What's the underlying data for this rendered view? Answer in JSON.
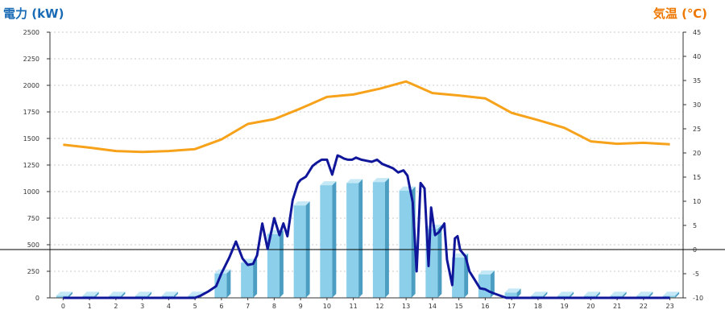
{
  "chart_data": {
    "type": "bar+line",
    "title_left": "電力 (kW)",
    "title_right": "気温 (℃)",
    "colors": {
      "title_left": "#1a6bb5",
      "title_right": "#ee7700",
      "bars": "#8ccfea",
      "bars_side": "#4b9ec2",
      "bars_top": "#c4e8f6",
      "power_line": "#10169a",
      "temp_line": "#f7a21b",
      "grid": "#bbbbbb",
      "zero_line": "#000000"
    },
    "grid": true,
    "categories": [
      "0",
      "1",
      "2",
      "3",
      "4",
      "5",
      "6",
      "7",
      "8",
      "9",
      "10",
      "11",
      "12",
      "13",
      "14",
      "15",
      "16",
      "17",
      "18",
      "19",
      "20",
      "21",
      "22",
      "23"
    ],
    "y_left": {
      "min": 0,
      "max": 2500,
      "ticks": [
        "0",
        "250",
        "500",
        "750",
        "1000",
        "1250",
        "1500",
        "1750",
        "2000",
        "2250",
        "2500"
      ]
    },
    "y_right": {
      "min": -10,
      "max": 45,
      "ticks": [
        "-10",
        "-5",
        "0",
        "5",
        "10",
        "15",
        "20",
        "25",
        "30",
        "35",
        "40",
        "45"
      ]
    },
    "series": [
      {
        "kind": "bar",
        "axis": "left",
        "values": [
          20,
          20,
          20,
          20,
          20,
          20,
          230,
          330,
          600,
          870,
          1060,
          1080,
          1090,
          1010,
          650,
          380,
          220,
          50,
          20,
          20,
          20,
          20,
          20,
          20
        ]
      },
      {
        "kind": "line",
        "axis": "right",
        "values": [
          21.7,
          21.1,
          20.4,
          20.2,
          20.4,
          20.8,
          22.8,
          26.0,
          27.0,
          29.2,
          31.6,
          32.1,
          33.3,
          34.8,
          32.4,
          31.9,
          31.3,
          28.3,
          26.8,
          25.2,
          22.4,
          21.9,
          22.1,
          21.8
        ]
      },
      {
        "kind": "line",
        "axis": "left",
        "x": [
          0,
          1,
          2,
          3,
          4,
          5,
          5.2,
          5.5,
          5.8,
          6.0,
          6.3,
          6.55,
          6.8,
          7.0,
          7.2,
          7.35,
          7.55,
          7.75,
          8.0,
          8.2,
          8.35,
          8.5,
          8.7,
          8.9,
          9.0,
          9.2,
          9.45,
          9.6,
          9.8,
          10.0,
          10.2,
          10.4,
          10.5,
          10.65,
          10.8,
          10.95,
          11.1,
          11.3,
          11.5,
          11.7,
          11.9,
          12.1,
          12.3,
          12.5,
          12.7,
          12.9,
          13.05,
          13.25,
          13.4,
          13.55,
          13.7,
          13.85,
          13.95,
          14.1,
          14.25,
          14.45,
          14.55,
          14.75,
          14.85,
          14.95,
          15.05,
          15.25,
          15.4,
          15.6,
          15.8,
          16.0,
          16.15,
          16.3,
          16.8,
          17.0,
          17.5,
          18,
          19,
          20,
          21,
          22,
          23
        ],
        "values": [
          0,
          0,
          0,
          0,
          0,
          0,
          20,
          60,
          110,
          230,
          380,
          530,
          370,
          310,
          320,
          400,
          700,
          460,
          750,
          590,
          700,
          580,
          920,
          1080,
          1110,
          1140,
          1240,
          1270,
          1300,
          1300,
          1160,
          1340,
          1330,
          1310,
          1300,
          1300,
          1320,
          1300,
          1290,
          1280,
          1300,
          1260,
          1240,
          1220,
          1180,
          1200,
          1150,
          900,
          250,
          1080,
          1030,
          300,
          850,
          590,
          620,
          700,
          360,
          120,
          560,
          580,
          450,
          390,
          250,
          170,
          90,
          80,
          60,
          45,
          0,
          0,
          0,
          0,
          0,
          0,
          0,
          0,
          0
        ]
      }
    ]
  }
}
